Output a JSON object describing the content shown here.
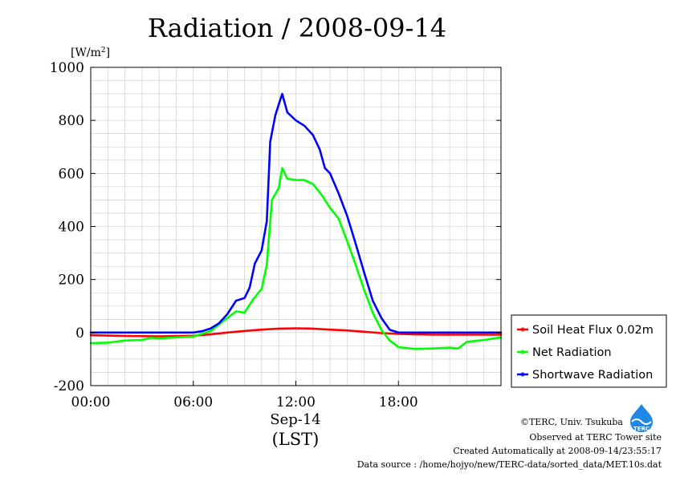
{
  "chart_data": {
    "type": "line",
    "title": "Radiation / 2008-09-14",
    "ylabel": "[W/m2]",
    "ylabel_base": "[W/m",
    "ylabel_sup": "2",
    "ylabel_close": "]",
    "ylim": [
      -200,
      1000
    ],
    "yticks": [
      -200,
      0,
      200,
      400,
      600,
      800,
      1000
    ],
    "ytick_labels": [
      "-200",
      "0",
      "200",
      "400",
      "600",
      "800",
      "1000"
    ],
    "xlim": [
      0,
      24
    ],
    "xticks": [
      0,
      6,
      12,
      18
    ],
    "xtick_labels": [
      "00:00",
      "06:00",
      "12:00",
      "18:00"
    ],
    "date_label": "Sep-14",
    "xlabel": "(LST)",
    "grid": true,
    "legend_position": "right",
    "series": [
      {
        "name": "Soil Heat Flux 0.02m",
        "color": "#ff0000",
        "points": [
          [
            0,
            -10
          ],
          [
            2,
            -13
          ],
          [
            4,
            -14
          ],
          [
            6,
            -12
          ],
          [
            7,
            -7
          ],
          [
            8,
            0
          ],
          [
            9,
            6
          ],
          [
            10,
            11
          ],
          [
            11,
            15
          ],
          [
            12,
            16
          ],
          [
            13,
            15
          ],
          [
            14,
            11
          ],
          [
            15,
            8
          ],
          [
            16,
            3
          ],
          [
            17,
            -2
          ],
          [
            18,
            -5
          ],
          [
            20,
            -8
          ],
          [
            22,
            -8
          ],
          [
            24,
            -8
          ]
        ]
      },
      {
        "name": "Net Radiation",
        "color": "#00ff00",
        "points": [
          [
            0,
            -40
          ],
          [
            1,
            -38
          ],
          [
            2,
            -30
          ],
          [
            3,
            -28
          ],
          [
            3.5,
            -20
          ],
          [
            4,
            -22
          ],
          [
            5,
            -18
          ],
          [
            6,
            -15
          ],
          [
            6.5,
            -5
          ],
          [
            7,
            5
          ],
          [
            7.5,
            30
          ],
          [
            8,
            55
          ],
          [
            8.5,
            80
          ],
          [
            9,
            75
          ],
          [
            9.5,
            125
          ],
          [
            10,
            165
          ],
          [
            10.3,
            255
          ],
          [
            10.6,
            500
          ],
          [
            11,
            545
          ],
          [
            11.2,
            620
          ],
          [
            11.5,
            580
          ],
          [
            12,
            575
          ],
          [
            12.5,
            575
          ],
          [
            13,
            560
          ],
          [
            13.5,
            520
          ],
          [
            14,
            470
          ],
          [
            14.5,
            430
          ],
          [
            15,
            345
          ],
          [
            15.5,
            255
          ],
          [
            16,
            160
          ],
          [
            16.5,
            75
          ],
          [
            17,
            10
          ],
          [
            17.5,
            -30
          ],
          [
            18,
            -55
          ],
          [
            19,
            -62
          ],
          [
            20,
            -60
          ],
          [
            21,
            -57
          ],
          [
            21.5,
            -60
          ],
          [
            22,
            -35
          ],
          [
            23,
            -28
          ],
          [
            24,
            -18
          ]
        ]
      },
      {
        "name": "Shortwave Radiation",
        "color": "#0000ff",
        "points": [
          [
            0,
            0
          ],
          [
            6,
            0
          ],
          [
            6.5,
            5
          ],
          [
            7,
            15
          ],
          [
            7.5,
            35
          ],
          [
            8,
            70
          ],
          [
            8.5,
            120
          ],
          [
            9,
            130
          ],
          [
            9.3,
            170
          ],
          [
            9.6,
            260
          ],
          [
            10,
            310
          ],
          [
            10.3,
            420
          ],
          [
            10.5,
            720
          ],
          [
            10.8,
            820
          ],
          [
            11,
            860
          ],
          [
            11.2,
            900
          ],
          [
            11.5,
            830
          ],
          [
            12,
            800
          ],
          [
            12.5,
            780
          ],
          [
            13,
            745
          ],
          [
            13.4,
            690
          ],
          [
            13.7,
            620
          ],
          [
            14,
            600
          ],
          [
            14.5,
            525
          ],
          [
            15,
            440
          ],
          [
            15.5,
            335
          ],
          [
            16,
            225
          ],
          [
            16.5,
            120
          ],
          [
            17,
            55
          ],
          [
            17.5,
            10
          ],
          [
            18,
            0
          ],
          [
            24,
            0
          ]
        ]
      }
    ]
  },
  "footer": {
    "copyright": "©TERC, Univ. Tsukuba",
    "observed": "Observed at TERC Tower site",
    "created": "Created Automatically at 2008-09-14/23:55:17",
    "source": "Data source : /home/hojyo/new/TERC-data/sorted_data/MET.10s.dat"
  },
  "logo": {
    "text": "TERC",
    "color": "#1e88e5"
  }
}
